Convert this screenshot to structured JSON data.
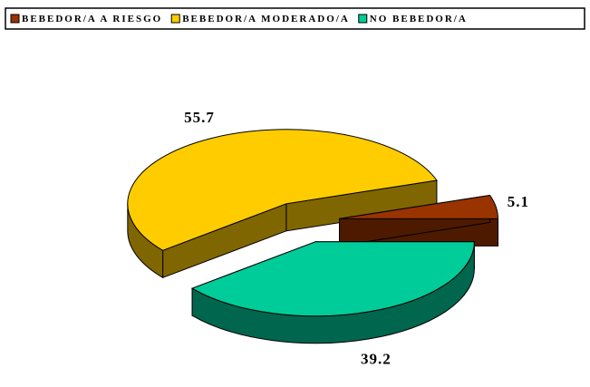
{
  "chart_data": {
    "type": "pie",
    "categories": [
      "BEBEDOR/A A RIESGO",
      "BEBEDOR/A MODERADO/A",
      "NO BEBEDOR/A"
    ],
    "values": [
      5.1,
      55.7,
      39.2
    ],
    "colors": [
      "#993300",
      "#ffcc00",
      "#00cc99"
    ],
    "legend": "top",
    "three_d": true,
    "exploded": true
  }
}
